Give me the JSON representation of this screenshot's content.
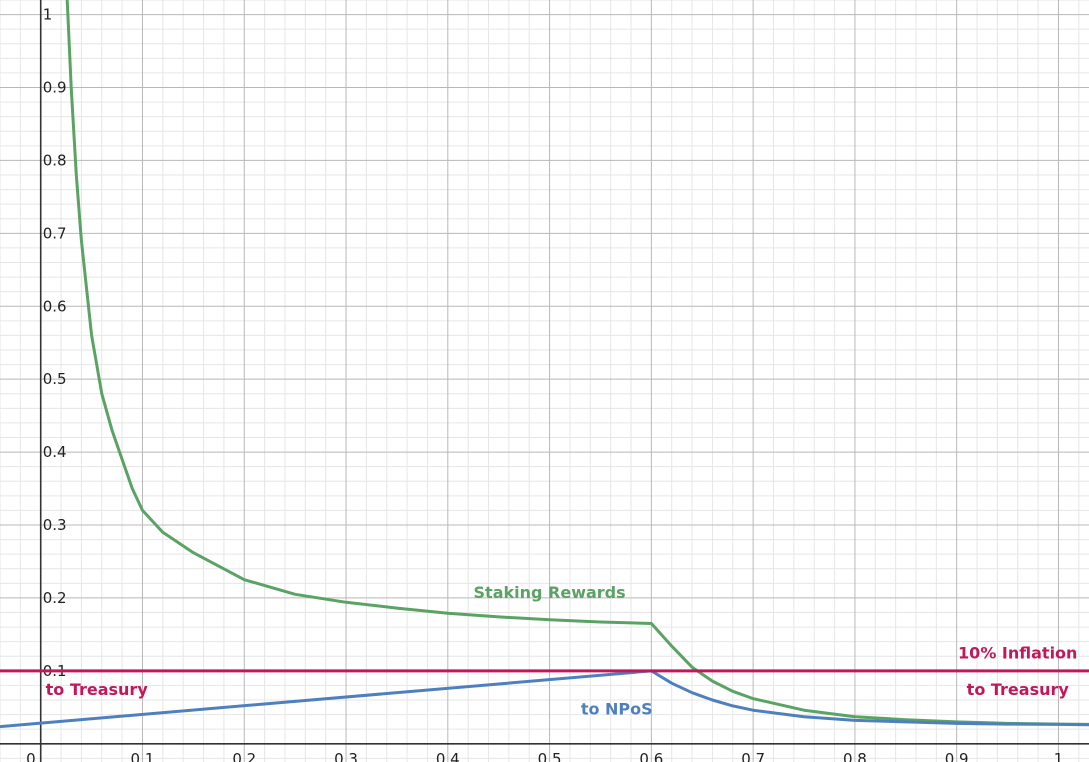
{
  "chart_data": {
    "type": "line",
    "title": "",
    "xlabel": "",
    "ylabel": "",
    "xlim": [
      -0.04,
      1.03
    ],
    "ylim": [
      -0.025,
      1.02
    ],
    "grid": true,
    "x_ticks": [
      "0",
      "0.1",
      "0.2",
      "0.3",
      "0.4",
      "0.5",
      "0.6",
      "0.7",
      "0.8",
      "0.9",
      "1"
    ],
    "y_ticks": [
      "0.1",
      "0.2",
      "0.3",
      "0.4",
      "0.5",
      "0.6",
      "0.7",
      "0.8",
      "0.9",
      "1"
    ],
    "series": [
      {
        "color": "#5aa364",
        "x": [
          0.026,
          0.03,
          0.035,
          0.04,
          0.05,
          0.06,
          0.07,
          0.08,
          0.09,
          0.1,
          0.12,
          0.15,
          0.2,
          0.25,
          0.3,
          0.35,
          0.4,
          0.45,
          0.5,
          0.55,
          0.6,
          0.62,
          0.64,
          0.66,
          0.68,
          0.7,
          0.75,
          0.8,
          0.85,
          0.9,
          0.95,
          1.0,
          1.03
        ],
        "y": [
          1.02,
          0.9,
          0.78,
          0.69,
          0.56,
          0.48,
          0.43,
          0.39,
          0.35,
          0.32,
          0.29,
          0.262,
          0.225,
          0.205,
          0.194,
          0.186,
          0.179,
          0.174,
          0.17,
          0.167,
          0.165,
          0.134,
          0.105,
          0.086,
          0.072,
          0.062,
          0.046,
          0.037,
          0.033,
          0.03,
          0.028,
          0.027,
          0.0265
        ]
      },
      {
        "color": "#4f80be",
        "x": [
          -0.04,
          0.6,
          0.62,
          0.64,
          0.66,
          0.68,
          0.7,
          0.75,
          0.8,
          0.85,
          0.9,
          0.95,
          1.0,
          1.03
        ],
        "y": [
          0.0235,
          0.1,
          0.083,
          0.07,
          0.06,
          0.052,
          0.046,
          0.037,
          0.032,
          0.03,
          0.028,
          0.027,
          0.0266,
          0.0262
        ]
      },
      {
        "color": "#c2185b",
        "x": [
          -0.04,
          1.03
        ],
        "y": [
          0.1,
          0.1
        ]
      }
    ],
    "annotations": [
      {
        "text": "Staking Rewards",
        "x": 0.5,
        "y": 0.2,
        "color": "#5aa364"
      },
      {
        "text": "10% Inflation",
        "x": 0.96,
        "y": 0.117,
        "color": "#c2185b"
      },
      {
        "text": "to Treasury",
        "x": 0.055,
        "y": 0.067,
        "color": "#c2185b"
      },
      {
        "text": "to Treasury",
        "x": 0.96,
        "y": 0.067,
        "color": "#c2185b"
      },
      {
        "text": "to NPoS",
        "x": 0.566,
        "y": 0.04,
        "color": "#4f80be"
      }
    ]
  }
}
